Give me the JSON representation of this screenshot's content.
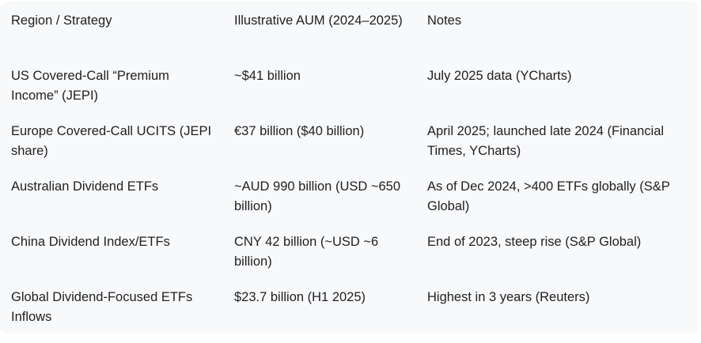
{
  "table": {
    "headers": [
      "Region / Strategy",
      "Illustrative AUM (2024–2025)",
      "Notes"
    ],
    "rows": [
      [
        "US Covered-Call “Premium Income” (JEPI)",
        "~$41 billion",
        "July 2025 data (YCharts)"
      ],
      [
        "Europe Covered-Call UCITS (JEPI share)",
        "€37 billion ($40 billion)",
        "April 2025; launched late 2024 (Financial Times, YCharts)"
      ],
      [
        "Australian Dividend ETFs",
        "~AUD 990 billion (USD ~650 billion)",
        "As of Dec 2024, >400 ETFs globally (S&P Global)"
      ],
      [
        "China Dividend Index/ETFs",
        "CNY 42 billion (~USD ~6 billion)",
        "End of 2023, steep rise (S&P Global)"
      ],
      [
        "Global Dividend-Focused ETFs Inflows",
        "$23.7 billion (H1 2025)",
        "Highest in 3 years (Reuters)"
      ]
    ]
  }
}
